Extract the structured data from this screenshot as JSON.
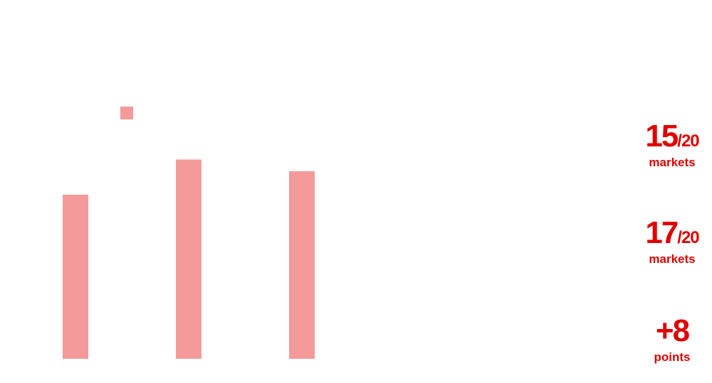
{
  "chart_data": {
    "type": "bar",
    "categories": [
      "",
      "",
      ""
    ],
    "series": [
      {
        "values": [
          70,
          85,
          80
        ],
        "color": "#f49a9a"
      }
    ],
    "legend_swatch_color": "#f49a9a",
    "ylim": [
      0,
      100
    ],
    "grid": false
  },
  "stats": [
    {
      "value": "15",
      "suffix": "/20",
      "label": "markets"
    },
    {
      "value": "17",
      "suffix": "/20",
      "label": "markets"
    },
    {
      "value": "+8",
      "suffix": "",
      "label": "points"
    }
  ],
  "colors": {
    "bar": "#f49a9a",
    "accent": "#e00000"
  }
}
